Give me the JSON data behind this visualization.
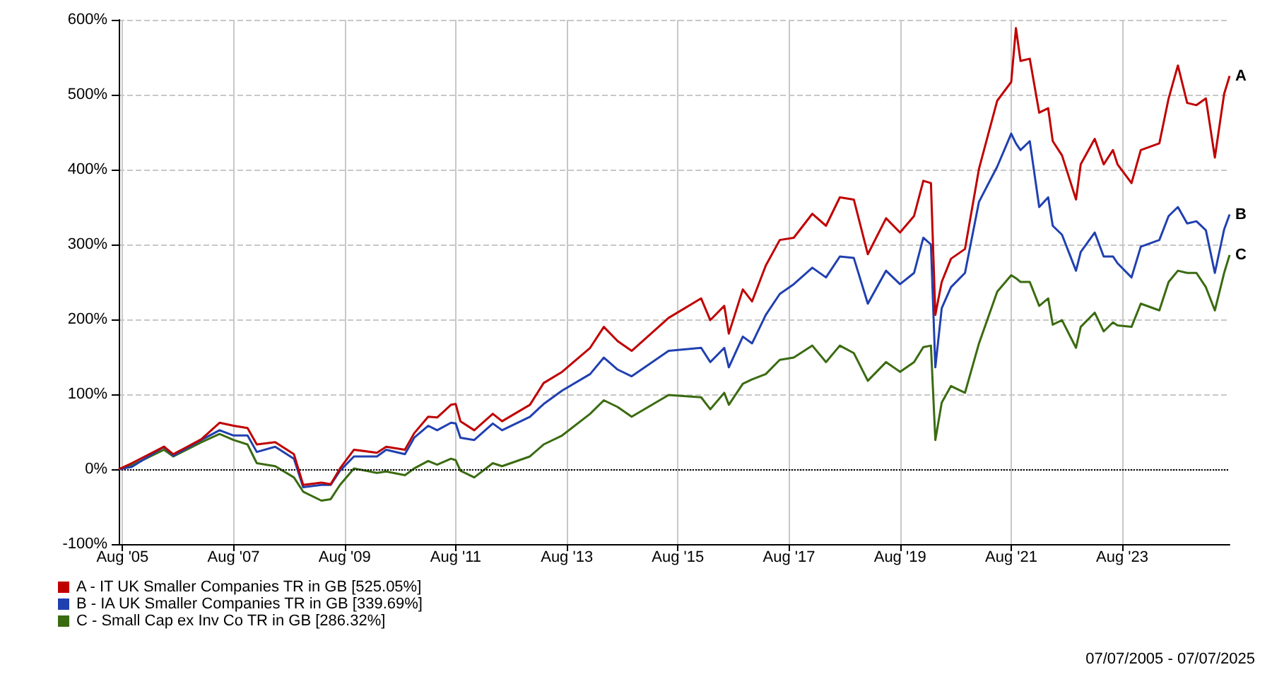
{
  "chart_data": {
    "type": "line",
    "x": [
      "2005-07-07",
      "2005-10",
      "2006-05",
      "2006-07",
      "2007-01",
      "2007-05",
      "2007-08",
      "2007-11",
      "2008-01",
      "2008-05",
      "2008-09",
      "2008-11",
      "2009-03",
      "2009-05",
      "2009-07",
      "2009-10",
      "2010-03",
      "2010-05",
      "2010-09",
      "2010-11",
      "2011-02",
      "2011-04",
      "2011-07",
      "2011-08",
      "2011-09",
      "2011-12",
      "2012-04",
      "2012-06",
      "2012-12",
      "2013-03",
      "2013-07",
      "2014-01",
      "2014-04",
      "2014-07",
      "2014-10",
      "2015-06",
      "2016-01",
      "2016-03",
      "2016-06",
      "2016-07",
      "2016-10",
      "2016-12",
      "2017-03",
      "2017-06",
      "2017-09",
      "2018-01",
      "2018-04",
      "2018-07",
      "2018-10",
      "2019-01",
      "2019-05",
      "2019-08",
      "2019-11",
      "2020-01",
      "2020-02-20",
      "2020-03-20",
      "2020-05",
      "2020-07",
      "2020-10",
      "2021-01",
      "2021-05",
      "2021-08",
      "2021-09",
      "2021-10",
      "2021-12",
      "2022-02",
      "2022-04",
      "2022-05",
      "2022-07",
      "2022-10",
      "2022-11",
      "2023-02",
      "2023-04",
      "2023-06",
      "2023-07",
      "2023-10",
      "2023-12",
      "2024-04",
      "2024-06",
      "2024-08",
      "2024-10",
      "2024-12",
      "2025-02",
      "2025-04",
      "2025-06",
      "2025-07-07"
    ],
    "series": [
      {
        "name": "A - IT UK Smaller Companies TR in GB [525.05%]",
        "color": "#c00000",
        "values": [
          0,
          8,
          30,
          20,
          40,
          62,
          58,
          55,
          33,
          36,
          20,
          -21,
          -18,
          -20,
          1,
          26,
          22,
          30,
          26,
          48,
          70,
          69,
          86,
          87,
          64,
          52,
          74,
          64,
          86,
          115,
          130,
          162,
          190,
          171,
          158,
          202,
          228,
          199,
          218,
          181,
          240,
          224,
          272,
          306,
          309,
          341,
          325,
          363,
          360,
          287,
          335,
          316,
          338,
          385,
          382,
          206,
          250,
          281,
          294,
          401,
          492,
          517,
          589,
          545,
          548,
          476,
          482,
          438,
          419,
          360,
          407,
          441,
          407,
          426,
          407,
          382,
          426,
          435,
          495,
          539,
          489,
          486,
          495,
          416,
          501,
          525
        ]
      },
      {
        "name": "B - IA UK Smaller Companies TR in GB [339.69%]",
        "color": "#2040b0",
        "values": [
          0,
          3,
          30,
          18,
          39,
          52,
          45,
          45,
          23,
          30,
          14,
          -24,
          -21,
          -21,
          -2,
          17,
          17,
          26,
          20,
          42,
          58,
          52,
          62,
          61,
          42,
          39,
          61,
          52,
          70,
          87,
          105,
          127,
          149,
          133,
          124,
          158,
          162,
          143,
          162,
          136,
          177,
          168,
          206,
          234,
          247,
          269,
          256,
          284,
          282,
          221,
          265,
          247,
          262,
          309,
          300,
          136,
          215,
          243,
          262,
          357,
          404,
          448,
          435,
          426,
          438,
          350,
          363,
          325,
          313,
          265,
          290,
          316,
          284,
          284,
          275,
          256,
          297,
          306,
          338,
          350,
          328,
          331,
          319,
          262,
          320,
          340
        ]
      },
      {
        "name": "C - Small Cap ex Inv Co TR in GB [286.32%]",
        "color": "#3a6b10",
        "values": [
          0,
          5,
          26,
          17,
          36,
          47,
          39,
          33,
          8,
          4,
          -11,
          -30,
          -42,
          -40,
          -21,
          1,
          -5,
          -3,
          -8,
          1,
          11,
          6,
          14,
          12,
          -2,
          -11,
          8,
          4,
          17,
          33,
          45,
          74,
          92,
          83,
          70,
          99,
          96,
          80,
          102,
          86,
          114,
          120,
          127,
          146,
          149,
          165,
          143,
          165,
          155,
          118,
          143,
          130,
          143,
          163,
          165,
          39,
          89,
          111,
          102,
          168,
          237,
          259,
          255,
          250,
          250,
          218,
          228,
          193,
          199,
          162,
          190,
          209,
          184,
          196,
          192,
          190,
          221,
          212,
          250,
          265,
          262,
          262,
          243,
          212,
          262,
          286
        ]
      }
    ],
    "xlim": [
      "2005-07-07",
      "2025-07-07"
    ],
    "xticks": [
      {
        "value": "2005-08",
        "label": "Aug '05"
      },
      {
        "value": "2007-08",
        "label": "Aug '07"
      },
      {
        "value": "2009-08",
        "label": "Aug '09"
      },
      {
        "value": "2011-08",
        "label": "Aug '11"
      },
      {
        "value": "2013-08",
        "label": "Aug '13"
      },
      {
        "value": "2015-08",
        "label": "Aug '15"
      },
      {
        "value": "2017-08",
        "label": "Aug '17"
      },
      {
        "value": "2019-08",
        "label": "Aug '19"
      },
      {
        "value": "2021-08",
        "label": "Aug '21"
      },
      {
        "value": "2023-08",
        "label": "Aug '23"
      }
    ],
    "ylim": [
      -100,
      600
    ],
    "yticks": [
      {
        "value": -100,
        "label": "-100%"
      },
      {
        "value": 0,
        "label": "0%"
      },
      {
        "value": 100,
        "label": "100%"
      },
      {
        "value": 200,
        "label": "200%"
      },
      {
        "value": 300,
        "label": "300%"
      },
      {
        "value": 400,
        "label": "400%"
      },
      {
        "value": 500,
        "label": "500%"
      },
      {
        "value": 600,
        "label": "600%"
      }
    ],
    "ref_lines": [
      {
        "axis": "y",
        "value": 0,
        "color": "#000000",
        "line_style": "dotted"
      }
    ],
    "grid": true,
    "legend": "bottom left",
    "marker": "none",
    "line_style": "solid",
    "annotations": [
      {
        "text": "A",
        "x": "2025-07-07",
        "y": 525
      },
      {
        "text": "B",
        "x": "2025-07-07",
        "y": 340
      },
      {
        "text": "C",
        "x": "2025-07-07",
        "y": 286
      },
      "07/07/2005 - 07/07/2025"
    ]
  }
}
